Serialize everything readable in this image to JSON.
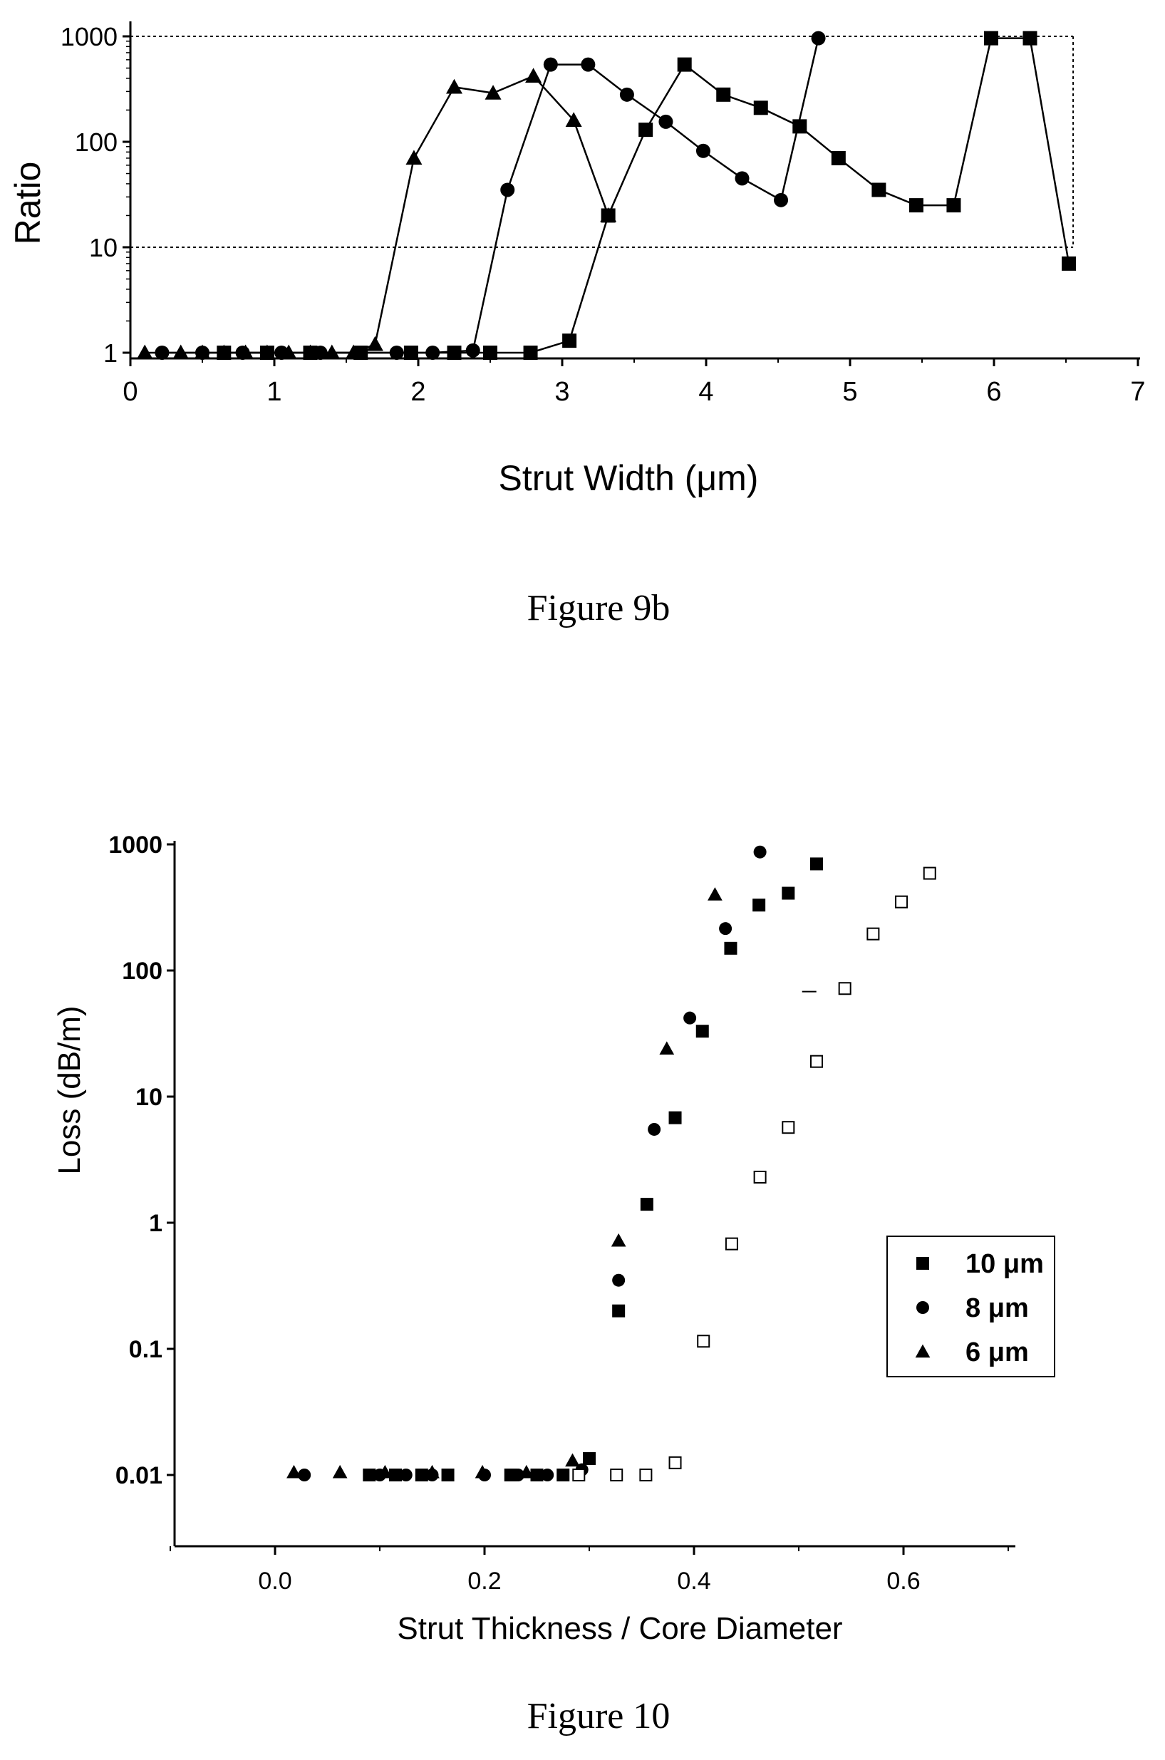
{
  "chart_data": [
    {
      "type": "line",
      "caption": "Figure 9b",
      "xlabel": "Strut Width (μm)",
      "ylabel": "Ratio",
      "xlim": [
        0,
        7
      ],
      "ylim": [
        1,
        1000
      ],
      "yscale": "log",
      "x_ticks": [
        "0",
        "1",
        "2",
        "3",
        "4",
        "5",
        "6",
        "7"
      ],
      "y_ticks": [
        {
          "value": 1,
          "label": "1"
        },
        {
          "value": 10,
          "label": "10"
        },
        {
          "value": 100,
          "label": "100"
        },
        {
          "value": 1000,
          "label": "1000"
        }
      ],
      "reference_lines": [
        {
          "orientation": "horizontal",
          "y": 1000,
          "style": "dotted"
        },
        {
          "orientation": "horizontal",
          "y": 10,
          "style": "dotted"
        },
        {
          "orientation": "vertical",
          "x": 6.55,
          "style": "dotted"
        }
      ],
      "series": [
        {
          "marker": "triangle",
          "x": [
            0.1,
            0.35,
            0.5,
            0.65,
            0.8,
            0.95,
            1.1,
            1.25,
            1.4,
            1.55,
            1.7,
            1.97,
            2.25,
            2.52,
            2.8,
            3.08,
            3.32
          ],
          "y": [
            1,
            1,
            1,
            1,
            1,
            1,
            1,
            1,
            1,
            1,
            1.2,
            70,
            330,
            290,
            420,
            160,
            20
          ]
        },
        {
          "marker": "circle",
          "x": [
            0.22,
            0.5,
            0.78,
            1.05,
            1.32,
            1.6,
            1.85,
            2.1,
            2.38,
            2.62,
            2.92,
            3.18,
            3.45,
            3.72,
            3.98,
            4.25,
            4.52,
            4.78
          ],
          "y": [
            1,
            1,
            1,
            1,
            1,
            1,
            1,
            1,
            1.05,
            35,
            540,
            540,
            280,
            155,
            82,
            45,
            28,
            960
          ]
        },
        {
          "marker": "square",
          "x": [
            0.65,
            0.95,
            1.25,
            1.6,
            1.95,
            2.25,
            2.5,
            2.78,
            3.05,
            3.32,
            3.58,
            3.85,
            4.12,
            4.38,
            4.65,
            4.92,
            5.2,
            5.46,
            5.72,
            5.98,
            6.25,
            6.52
          ],
          "y": [
            1,
            1,
            1,
            1,
            1,
            1,
            1,
            1,
            1.3,
            20,
            130,
            540,
            280,
            210,
            140,
            70,
            35,
            25,
            25,
            960,
            960,
            7
          ]
        }
      ]
    },
    {
      "type": "scatter",
      "caption": "Figure 10",
      "xlabel": "Strut Thickness / Core Diameter",
      "ylabel": "Loss (dB/m)",
      "xlim": [
        -0.1,
        0.7
      ],
      "ylim": [
        0.002,
        1000
      ],
      "yscale": "log",
      "x_ticks": [
        {
          "value": 0.0,
          "label": "0.0"
        },
        {
          "value": 0.2,
          "label": "0.2"
        },
        {
          "value": 0.4,
          "label": "0.4"
        },
        {
          "value": 0.6,
          "label": "0.6"
        }
      ],
      "y_ticks": [
        {
          "value": 0.01,
          "label": "0.01"
        },
        {
          "value": 0.1,
          "label": "0.1"
        },
        {
          "value": 1,
          "label": "1"
        },
        {
          "value": 10,
          "label": "10"
        },
        {
          "value": 100,
          "label": "100"
        },
        {
          "value": 1000,
          "label": "1000"
        }
      ],
      "legend": {
        "position": "right",
        "entries": [
          {
            "marker": "square",
            "label": "10 μm"
          },
          {
            "marker": "circle",
            "label": "8 μm"
          },
          {
            "marker": "triangle",
            "label": "6 μm"
          }
        ]
      },
      "series": [
        {
          "name": "10 μm",
          "marker": "square",
          "x": [
            0.09,
            0.115,
            0.14,
            0.165,
            0.225,
            0.25,
            0.275,
            0.3,
            0.328,
            0.355,
            0.382,
            0.408,
            0.435,
            0.462,
            0.49,
            0.517
          ],
          "y": [
            0.01,
            0.01,
            0.01,
            0.01,
            0.01,
            0.01,
            0.01,
            0.0135,
            0.2,
            1.4,
            6.8,
            33,
            150,
            330,
            410,
            700
          ]
        },
        {
          "name": "8 μm",
          "marker": "circle",
          "x": [
            0.028,
            0.1,
            0.125,
            0.15,
            0.2,
            0.232,
            0.26,
            0.293,
            0.328,
            0.362,
            0.396,
            0.43,
            0.463
          ],
          "y": [
            0.01,
            0.01,
            0.01,
            0.01,
            0.01,
            0.01,
            0.01,
            0.011,
            0.35,
            5.5,
            42,
            215,
            870
          ]
        },
        {
          "name": "6 μm",
          "marker": "triangle",
          "x": [
            0.018,
            0.062,
            0.105,
            0.15,
            0.198,
            0.24,
            0.284,
            0.328,
            0.374,
            0.42
          ],
          "y": [
            0.0105,
            0.0105,
            0.0105,
            0.0105,
            0.0105,
            0.0105,
            0.013,
            0.72,
            24,
            400
          ]
        },
        {
          "marker": "open-square",
          "x": [
            0.29,
            0.326,
            0.354,
            0.382,
            0.409,
            0.436,
            0.463,
            0.49,
            0.517,
            0.544,
            0.571,
            0.598,
            0.625
          ],
          "y": [
            0.01,
            0.01,
            0.01,
            0.0125,
            0.115,
            0.68,
            2.3,
            5.7,
            19,
            72,
            195,
            350,
            590
          ]
        },
        {
          "marker": "dash",
          "x": [
            0.51
          ],
          "y": [
            68
          ]
        }
      ]
    }
  ]
}
